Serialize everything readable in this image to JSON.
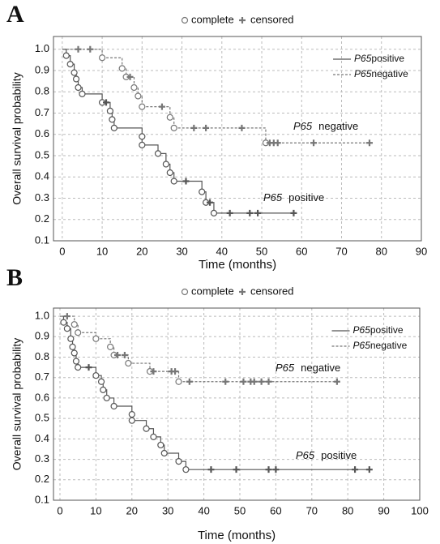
{
  "chart_data": [
    {
      "type": "kaplan-meier",
      "panel_label": "A",
      "marker_legend": [
        "complete",
        "censored"
      ],
      "xlabel": "Time (months)",
      "ylabel": "Overall survival probability",
      "xlim": [
        -2.2,
        90
      ],
      "ylim": [
        0.1,
        1.06
      ],
      "xticks": [
        0,
        10,
        20,
        30,
        40,
        50,
        60,
        70,
        80,
        90
      ],
      "yticks": [
        0.1,
        0.2,
        0.3,
        0.4,
        0.5,
        0.6,
        0.7,
        0.8,
        0.9,
        {
          "value": 1,
          "label": "1.0"
        }
      ],
      "grid": true,
      "series": [
        {
          "name_italic": "P65",
          "name": "positive",
          "color": "#555555",
          "dash": false,
          "x": [
            0,
            1,
            2,
            3,
            3.5,
            4,
            5,
            10,
            12,
            12.5,
            13,
            20,
            20,
            24,
            26,
            27,
            28,
            35,
            36,
            38
          ],
          "values": [
            1,
            0.97,
            0.93,
            0.89,
            0.86,
            0.82,
            0.79,
            0.75,
            0.71,
            0.67,
            0.63,
            0.59,
            0.55,
            0.51,
            0.46,
            0.42,
            0.38,
            0.33,
            0.28,
            0.23
          ],
          "censored_x": [
            11,
            31,
            37,
            42,
            47,
            49,
            58
          ],
          "censored_values": [
            0.75,
            0.38,
            0.28,
            0.23,
            0.23,
            0.23,
            0.23
          ]
        },
        {
          "name_italic": "P65",
          "name": "negative",
          "color": "#777777",
          "dash": true,
          "x": [
            0,
            10,
            15,
            16,
            18,
            19,
            20,
            27,
            28,
            51
          ],
          "values": [
            1,
            0.96,
            0.91,
            0.87,
            0.82,
            0.78,
            0.73,
            0.68,
            0.63,
            0.56
          ],
          "censored_x": [
            4,
            7,
            17,
            25,
            33,
            36,
            45,
            52,
            53,
            54,
            63,
            77
          ],
          "censored_values": [
            1,
            1,
            0.87,
            0.73,
            0.63,
            0.63,
            0.63,
            0.56,
            0.56,
            0.56,
            0.56,
            0.56
          ]
        }
      ],
      "annotations": [
        {
          "italic": "P65",
          "text": "negative"
        },
        {
          "italic": "P65",
          "text": "positive"
        }
      ]
    },
    {
      "type": "kaplan-meier",
      "panel_label": "B",
      "marker_legend": [
        "complete",
        "censored"
      ],
      "xlabel": "Time (months)",
      "ylabel": "Overall survival probability",
      "xlim": [
        -1.8,
        100
      ],
      "ylim": [
        0.1,
        1.04
      ],
      "xticks": [
        0,
        10,
        20,
        30,
        40,
        50,
        60,
        70,
        80,
        90,
        100
      ],
      "yticks": [
        0.1,
        0.2,
        0.3,
        0.4,
        0.5,
        0.6,
        0.7,
        0.8,
        0.9,
        {
          "value": 1,
          "label": "1.0"
        }
      ],
      "grid": true,
      "series": [
        {
          "name_italic": "P65",
          "name": "positive",
          "color": "#555555",
          "dash": false,
          "x": [
            0,
            1,
            2,
            3,
            3.5,
            4,
            4.5,
            5,
            10,
            11.5,
            12,
            13,
            15,
            20,
            20,
            24,
            26,
            28,
            29,
            33,
            35
          ],
          "values": [
            1,
            0.97,
            0.94,
            0.89,
            0.85,
            0.82,
            0.78,
            0.75,
            0.71,
            0.68,
            0.64,
            0.6,
            0.56,
            0.52,
            0.49,
            0.45,
            0.41,
            0.37,
            0.33,
            0.29,
            0.25
          ],
          "censored_x": [
            8,
            42,
            49,
            58,
            60,
            82,
            86
          ],
          "censored_values": [
            0.75,
            0.25,
            0.25,
            0.25,
            0.25,
            0.25,
            0.25
          ]
        },
        {
          "name_italic": "P65",
          "name": "negative",
          "color": "#777777",
          "dash": true,
          "x": [
            0,
            4,
            5,
            10,
            14,
            15,
            19,
            25,
            33
          ],
          "values": [
            1,
            0.96,
            0.92,
            0.89,
            0.85,
            0.81,
            0.77,
            0.73,
            0.68
          ],
          "censored_x": [
            2,
            16,
            18,
            26,
            31,
            32,
            36,
            46,
            51,
            53,
            54,
            56,
            58,
            77
          ],
          "censored_values": [
            1,
            0.81,
            0.81,
            0.73,
            0.73,
            0.73,
            0.68,
            0.68,
            0.68,
            0.68,
            0.68,
            0.68,
            0.68,
            0.68
          ]
        }
      ],
      "annotations": [
        {
          "italic": "P65",
          "text": "negative"
        },
        {
          "italic": "P65",
          "text": "positive"
        }
      ]
    }
  ]
}
